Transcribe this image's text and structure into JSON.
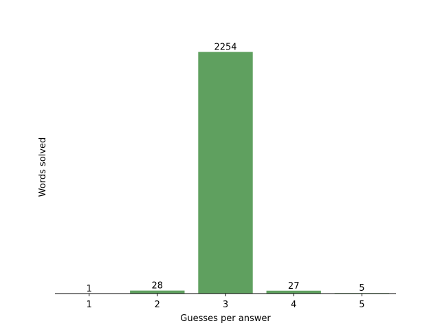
{
  "chart_data": {
    "type": "bar",
    "categories": [
      "1",
      "2",
      "3",
      "4",
      "5"
    ],
    "values": [
      1,
      28,
      2254,
      27,
      5
    ],
    "data_labels": [
      "1",
      "28",
      "2254",
      "27",
      "5"
    ],
    "xlabel": "Guesses per answer",
    "ylabel": "Words solved",
    "ylim": [
      0,
      2366.7
    ],
    "grid": false,
    "legend": "none",
    "bar_color": "#5fa05f",
    "axis_color": "#000000"
  }
}
